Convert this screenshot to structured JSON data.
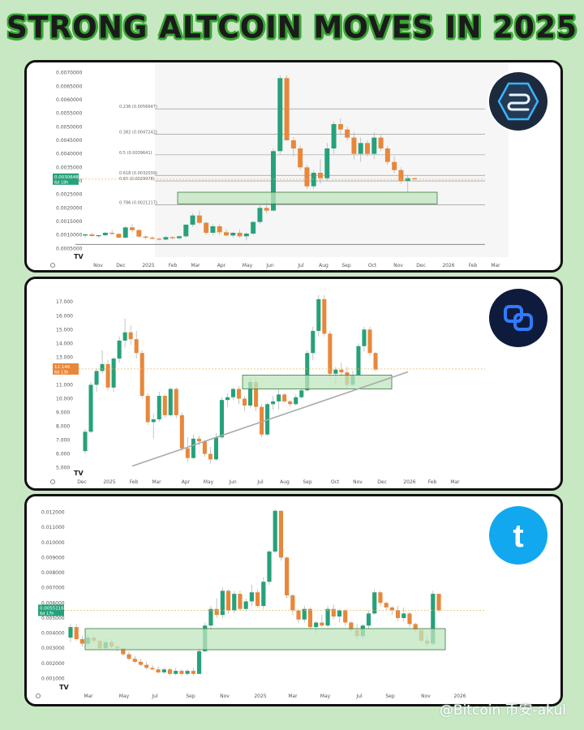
{
  "header": {
    "title": "STRONG ALTCOIN MOVES IN 2025"
  },
  "watermark": "@Bitcoin 币安-akul",
  "colors": {
    "bull": "#26a17b",
    "bear": "#e8873a",
    "zone": "#bfe6bf"
  },
  "chart_data": [
    {
      "type": "candlestick",
      "icon": "stacked-layers-logo-icon",
      "y_ticks": [
        "0.0070000",
        "0.0065000",
        "0.0060000",
        "0.0055000",
        "0.0050000",
        "0.0045000",
        "0.0040000",
        "0.0035000",
        "0.0030000",
        "0.0025000",
        "0.0020000",
        "0.0015000",
        "0.0010000",
        "0.0005000"
      ],
      "x_ticks": [
        "Nov",
        "Dec",
        "2025",
        "Feb",
        "Mar",
        "Apr",
        "May",
        "Jun",
        "Jul",
        "Aug",
        "Sep",
        "Oct",
        "Nov",
        "Dec",
        "2026",
        "Feb",
        "Mar"
      ],
      "ylim": [
        0.0003,
        0.0072
      ],
      "price_label": "0.0030648",
      "countdown_label": "6d 18h",
      "fib_levels": [
        {
          "label": "0.236 (0.0056647)",
          "value": 0.0056647
        },
        {
          "label": "0.382 (0.0047242)",
          "value": 0.0047242
        },
        {
          "label": "0.5 (0.0039641)",
          "value": 0.0039641
        },
        {
          "label": "0.618 (0.0032039)",
          "value": 0.0032039
        },
        {
          "label": "0.65 (0.0029978)",
          "value": 0.0029978
        },
        {
          "label": "0.786 (0.0021217)",
          "value": 0.0021217
        }
      ],
      "baseline": 0.00065,
      "zone": {
        "low": 0.00215,
        "high": 0.00258
      },
      "candles": [
        [
          0.00098,
          0.00105,
          0.0009,
          0.00102
        ],
        [
          0.00102,
          0.00108,
          0.00095,
          0.00096
        ],
        [
          0.00096,
          0.00101,
          0.0009,
          0.00099
        ],
        [
          0.00099,
          0.00112,
          0.00096,
          0.00108
        ],
        [
          0.00108,
          0.00118,
          0.001,
          0.00104
        ],
        [
          0.00104,
          0.00106,
          0.00088,
          0.0009
        ],
        [
          0.0009,
          0.00132,
          0.00088,
          0.00128
        ],
        [
          0.00128,
          0.0014,
          0.0011,
          0.00118
        ],
        [
          0.00118,
          0.00122,
          0.0009,
          0.00094
        ],
        [
          0.00094,
          0.00098,
          0.00084,
          0.0009
        ],
        [
          0.0009,
          0.00096,
          0.00082,
          0.00086
        ],
        [
          0.00086,
          0.0009,
          0.0008,
          0.00083
        ],
        [
          0.00083,
          0.00096,
          0.0008,
          0.00092
        ],
        [
          0.00092,
          0.00095,
          0.00084,
          0.00088
        ],
        [
          0.00088,
          0.00098,
          0.00085,
          0.00095
        ],
        [
          0.00095,
          0.0014,
          0.0009,
          0.00138
        ],
        [
          0.00138,
          0.0018,
          0.0013,
          0.00172
        ],
        [
          0.00172,
          0.0019,
          0.0014,
          0.00145
        ],
        [
          0.00145,
          0.0015,
          0.001,
          0.00108
        ],
        [
          0.00108,
          0.0014,
          0.001,
          0.00132
        ],
        [
          0.00132,
          0.0014,
          0.001,
          0.0011
        ],
        [
          0.0011,
          0.0012,
          0.00095,
          0.00098
        ],
        [
          0.00098,
          0.00112,
          0.0009,
          0.00108
        ],
        [
          0.00108,
          0.0012,
          0.0009,
          0.00095
        ],
        [
          0.00095,
          0.0011,
          0.0008,
          0.00105
        ],
        [
          0.00105,
          0.00152,
          0.001,
          0.00148
        ],
        [
          0.00148,
          0.0021,
          0.0014,
          0.002
        ],
        [
          0.002,
          0.0023,
          0.0018,
          0.0019
        ],
        [
          0.0019,
          0.0042,
          0.0019,
          0.0041
        ],
        [
          0.0041,
          0.0069,
          0.004,
          0.0068
        ],
        [
          0.0068,
          0.0069,
          0.0045,
          0.0045
        ],
        [
          0.0045,
          0.0046,
          0.0039,
          0.0042
        ],
        [
          0.0042,
          0.0043,
          0.0034,
          0.0035
        ],
        [
          0.0035,
          0.0036,
          0.0027,
          0.0028
        ],
        [
          0.0028,
          0.0034,
          0.0027,
          0.0033
        ],
        [
          0.0033,
          0.0038,
          0.0029,
          0.0031
        ],
        [
          0.0031,
          0.0044,
          0.003,
          0.0042
        ],
        [
          0.0042,
          0.0052,
          0.004,
          0.0051
        ],
        [
          0.0051,
          0.0053,
          0.0047,
          0.0049
        ],
        [
          0.0049,
          0.005,
          0.0045,
          0.0046
        ],
        [
          0.0046,
          0.0048,
          0.0038,
          0.004
        ],
        [
          0.004,
          0.0046,
          0.0037,
          0.0044
        ],
        [
          0.0044,
          0.0045,
          0.0039,
          0.004
        ],
        [
          0.004,
          0.0048,
          0.0038,
          0.0046
        ],
        [
          0.0046,
          0.0047,
          0.0041,
          0.0042
        ],
        [
          0.0042,
          0.0043,
          0.0036,
          0.0037
        ],
        [
          0.0037,
          0.0039,
          0.0033,
          0.0034
        ],
        [
          0.0034,
          0.0035,
          0.0029,
          0.003
        ],
        [
          0.003,
          0.0032,
          0.0026,
          0.0031
        ],
        [
          0.0031,
          0.00312,
          0.003,
          0.00306
        ]
      ]
    },
    {
      "type": "candlestick",
      "icon": "chain-link-logo-icon",
      "y_ticks": [
        "17.000",
        "16.000",
        "15.000",
        "14.000",
        "13.000",
        "12.000",
        "11.000",
        "10.000",
        "9.000",
        "8.000",
        "7.000",
        "6.000",
        "5.000"
      ],
      "x_ticks": [
        "Dec",
        "2025",
        "Feb",
        "Mar",
        "Apr",
        "May",
        "Jun",
        "Jul",
        "Aug",
        "Sep",
        "Oct",
        "Nov",
        "Dec",
        "2026",
        "Feb",
        "Mar"
      ],
      "ylim": [
        4.8,
        17.6
      ],
      "price_label": "12.146",
      "countdown_label": "6d 13h",
      "trendline": [
        [
          5.0,
          0.3
        ],
        [
          11.7,
          0.74
        ]
      ],
      "zone": {
        "low": 10.7,
        "high": 11.7
      },
      "candles": [
        [
          6.2,
          7.8,
          6.0,
          7.6
        ],
        [
          7.6,
          11.2,
          7.5,
          11.0
        ],
        [
          11.0,
          12.2,
          10.5,
          12.0
        ],
        [
          12.0,
          13.5,
          11.8,
          12.5
        ],
        [
          12.5,
          12.8,
          10.6,
          10.8
        ],
        [
          10.8,
          13.0,
          10.5,
          12.9
        ],
        [
          12.9,
          14.5,
          12.6,
          14.2
        ],
        [
          14.2,
          15.8,
          13.7,
          14.8
        ],
        [
          14.8,
          15.3,
          13.9,
          14.3
        ],
        [
          14.3,
          14.9,
          12.9,
          13.3
        ],
        [
          13.3,
          13.5,
          10.0,
          10.2
        ],
        [
          10.2,
          10.4,
          8.1,
          8.3
        ],
        [
          8.3,
          8.9,
          7.1,
          8.5
        ],
        [
          8.5,
          10.5,
          8.3,
          10.2
        ],
        [
          10.2,
          10.3,
          8.6,
          8.8
        ],
        [
          8.8,
          10.8,
          8.7,
          10.7
        ],
        [
          10.7,
          10.8,
          8.6,
          8.8
        ],
        [
          8.8,
          9.0,
          6.2,
          6.4
        ],
        [
          6.4,
          7.2,
          5.4,
          5.7
        ],
        [
          5.7,
          7.4,
          5.6,
          7.1
        ],
        [
          7.1,
          7.3,
          6.6,
          6.9
        ],
        [
          6.9,
          7.0,
          5.8,
          6.0
        ],
        [
          6.0,
          6.5,
          5.3,
          5.6
        ],
        [
          5.6,
          7.5,
          5.5,
          7.2
        ],
        [
          7.2,
          10.1,
          7.1,
          9.9
        ],
        [
          9.9,
          10.4,
          9.4,
          10.1
        ],
        [
          10.1,
          10.8,
          9.9,
          10.7
        ],
        [
          10.7,
          10.9,
          9.6,
          10.0
        ],
        [
          10.0,
          10.2,
          9.1,
          9.5
        ],
        [
          9.5,
          11.5,
          9.3,
          11.2
        ],
        [
          11.2,
          11.6,
          9.1,
          9.4
        ],
        [
          9.4,
          9.6,
          7.2,
          7.4
        ],
        [
          7.4,
          9.7,
          7.3,
          9.6
        ],
        [
          9.6,
          10.2,
          9.2,
          9.8
        ],
        [
          9.8,
          10.7,
          9.2,
          10.3
        ],
        [
          10.3,
          10.4,
          9.7,
          9.8
        ],
        [
          9.8,
          9.9,
          9.4,
          9.6
        ],
        [
          9.6,
          10.3,
          9.5,
          10.1
        ],
        [
          10.1,
          10.8,
          10.0,
          10.6
        ],
        [
          10.6,
          13.5,
          10.5,
          13.3
        ],
        [
          13.3,
          15.2,
          12.8,
          14.9
        ],
        [
          14.9,
          17.5,
          14.5,
          17.2
        ],
        [
          17.2,
          17.5,
          14.5,
          14.7
        ],
        [
          14.7,
          14.9,
          11.5,
          11.8
        ],
        [
          11.8,
          12.3,
          11.0,
          12.1
        ],
        [
          12.1,
          12.6,
          11.6,
          11.9
        ],
        [
          11.9,
          12.3,
          10.7,
          11.0
        ],
        [
          11.0,
          12.0,
          10.9,
          11.7
        ],
        [
          11.7,
          14.0,
          11.5,
          13.8
        ],
        [
          13.8,
          15.2,
          13.4,
          15.0
        ],
        [
          15.0,
          15.2,
          13.1,
          13.3
        ],
        [
          13.3,
          13.4,
          12.0,
          12.1
        ]
      ]
    },
    {
      "type": "candlestick",
      "icon": "letter-t-logo-icon",
      "y_ticks": [
        "0.012000",
        "0.011000",
        "0.010000",
        "0.009000",
        "0.008000",
        "0.007000",
        "0.006000",
        "0.005000",
        "0.004000",
        "0.003000",
        "0.002000",
        "0.001000"
      ],
      "x_ticks": [
        "Mar",
        "May",
        "Jul",
        "Sep",
        "Nov",
        "2025",
        "Mar",
        "May",
        "Jul",
        "Sep",
        "Nov",
        "2026"
      ],
      "ylim": [
        0.0007,
        0.0123
      ],
      "price_label": "0.0055116",
      "countdown_label": "6d 17h",
      "zone": {
        "low": 0.0029,
        "high": 0.0043
      },
      "candles": [
        [
          0.0037,
          0.0046,
          0.0034,
          0.0044
        ],
        [
          0.0044,
          0.0046,
          0.0035,
          0.0036
        ],
        [
          0.0036,
          0.0038,
          0.0031,
          0.0033
        ],
        [
          0.0033,
          0.0039,
          0.0031,
          0.0037
        ],
        [
          0.0037,
          0.0038,
          0.0033,
          0.0035
        ],
        [
          0.0035,
          0.0035,
          0.0029,
          0.003
        ],
        [
          0.003,
          0.0036,
          0.0029,
          0.0034
        ],
        [
          0.0034,
          0.0036,
          0.003,
          0.0031
        ],
        [
          0.0031,
          0.0032,
          0.0028,
          0.003
        ],
        [
          0.003,
          0.0031,
          0.0025,
          0.0026
        ],
        [
          0.0026,
          0.0028,
          0.0022,
          0.0023
        ],
        [
          0.0023,
          0.0025,
          0.002,
          0.0021
        ],
        [
          0.0021,
          0.0023,
          0.0018,
          0.0019
        ],
        [
          0.0019,
          0.0021,
          0.0016,
          0.0017
        ],
        [
          0.0017,
          0.0019,
          0.0015,
          0.0016
        ],
        [
          0.0016,
          0.0018,
          0.0013,
          0.0014
        ],
        [
          0.0014,
          0.0017,
          0.0013,
          0.0016
        ],
        [
          0.0016,
          0.0017,
          0.0012,
          0.0013
        ],
        [
          0.0013,
          0.0017,
          0.0012,
          0.0015
        ],
        [
          0.0015,
          0.0016,
          0.0012,
          0.0013
        ],
        [
          0.0013,
          0.0016,
          0.0012,
          0.0015
        ],
        [
          0.0015,
          0.0017,
          0.0012,
          0.0013
        ],
        [
          0.0013,
          0.003,
          0.0013,
          0.0028
        ],
        [
          0.0028,
          0.0047,
          0.0027,
          0.0045
        ],
        [
          0.0045,
          0.0058,
          0.0042,
          0.0056
        ],
        [
          0.0056,
          0.0063,
          0.005,
          0.0052
        ],
        [
          0.0052,
          0.007,
          0.005,
          0.0068
        ],
        [
          0.0068,
          0.0069,
          0.0053,
          0.0055
        ],
        [
          0.0055,
          0.0068,
          0.0053,
          0.0066
        ],
        [
          0.0066,
          0.0068,
          0.0055,
          0.0056
        ],
        [
          0.0056,
          0.0063,
          0.0054,
          0.0061
        ],
        [
          0.0061,
          0.0072,
          0.0058,
          0.0067
        ],
        [
          0.0067,
          0.0069,
          0.0057,
          0.0058
        ],
        [
          0.0058,
          0.0077,
          0.0056,
          0.0074
        ],
        [
          0.0074,
          0.0095,
          0.0072,
          0.0094
        ],
        [
          0.0094,
          0.0122,
          0.0093,
          0.0121
        ],
        [
          0.0121,
          0.0121,
          0.0088,
          0.009
        ],
        [
          0.009,
          0.0091,
          0.0063,
          0.0065
        ],
        [
          0.0065,
          0.0066,
          0.0052,
          0.0055
        ],
        [
          0.0055,
          0.0056,
          0.0047,
          0.0049
        ],
        [
          0.0049,
          0.0058,
          0.0047,
          0.0056
        ],
        [
          0.0056,
          0.0057,
          0.0043,
          0.0044
        ],
        [
          0.0044,
          0.0048,
          0.004,
          0.0047
        ],
        [
          0.0047,
          0.0052,
          0.0044,
          0.0045
        ],
        [
          0.0045,
          0.0058,
          0.0044,
          0.0056
        ],
        [
          0.0056,
          0.0059,
          0.0049,
          0.0051
        ],
        [
          0.0051,
          0.0056,
          0.0047,
          0.0055
        ],
        [
          0.0055,
          0.0056,
          0.0045,
          0.0047
        ],
        [
          0.0047,
          0.0048,
          0.004,
          0.0042
        ],
        [
          0.0042,
          0.0046,
          0.0036,
          0.0038
        ],
        [
          0.0038,
          0.0046,
          0.0036,
          0.0045
        ],
        [
          0.0045,
          0.0055,
          0.0043,
          0.0053
        ],
        [
          0.0053,
          0.0069,
          0.0052,
          0.0067
        ],
        [
          0.0067,
          0.0068,
          0.0058,
          0.006
        ],
        [
          0.006,
          0.0061,
          0.0055,
          0.0057
        ],
        [
          0.0057,
          0.0058,
          0.0052,
          0.0055
        ],
        [
          0.0055,
          0.0058,
          0.0048,
          0.005
        ],
        [
          0.005,
          0.0057,
          0.0048,
          0.0053
        ],
        [
          0.0053,
          0.0054,
          0.0044,
          0.0046
        ],
        [
          0.0046,
          0.0047,
          0.004,
          0.0042
        ],
        [
          0.0042,
          0.0043,
          0.0034,
          0.0035
        ],
        [
          0.0035,
          0.0038,
          0.0031,
          0.0033
        ],
        [
          0.0033,
          0.0068,
          0.0032,
          0.0066
        ],
        [
          0.0066,
          0.0066,
          0.0054,
          0.0055
        ]
      ]
    }
  ]
}
